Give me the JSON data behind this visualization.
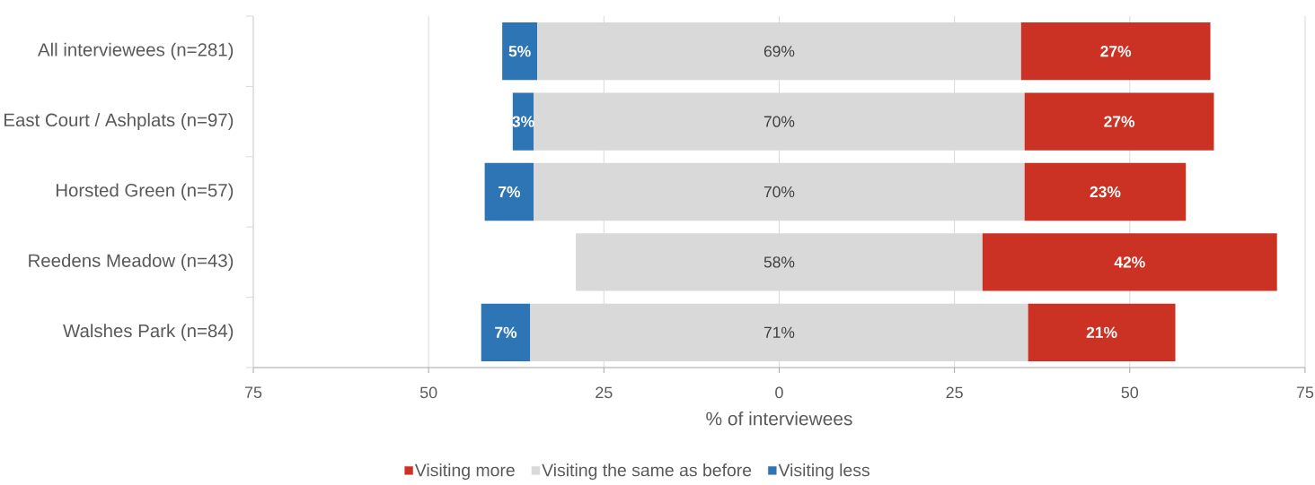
{
  "chart_data": {
    "type": "bar",
    "orientation": "horizontal",
    "categories": [
      "All interviewees (n=281)",
      "East Court / Ashplats (n=97)",
      "Horsted Green (n=57)",
      "Reedens Meadow (n=43)",
      "Walshes Park (n=84)"
    ],
    "series": [
      {
        "name": "Visiting less",
        "color": "#2e75b6",
        "values": [
          5,
          3,
          7,
          null,
          7
        ],
        "base": [
          -39.5,
          -38,
          -42,
          null,
          -42.5
        ],
        "value_labels": [
          "5%",
          "3%",
          "7%",
          null,
          "7%"
        ]
      },
      {
        "name": "Visiting the same as before",
        "color": "#d9d9d9",
        "values": [
          69,
          70,
          70,
          58,
          71
        ],
        "base": [
          -34.5,
          -35,
          -35,
          -29,
          -35.5
        ],
        "value_labels": [
          "69%",
          "70%",
          "70%",
          "58%",
          "71%"
        ]
      },
      {
        "name": "Visiting more",
        "color": "#cc3224",
        "values": [
          27,
          27,
          23,
          42,
          21
        ],
        "base": [
          34.5,
          35,
          35,
          29,
          35.5
        ],
        "value_labels": [
          "27%",
          "27%",
          "23%",
          "42%",
          "21%"
        ]
      }
    ],
    "xlabel": "% of interviewees",
    "xlim": [
      -75,
      75
    ],
    "xticks": [
      {
        "value": -75,
        "label": "75"
      },
      {
        "value": -50,
        "label": "50"
      },
      {
        "value": -25,
        "label": "25"
      },
      0,
      25,
      50,
      75
    ],
    "grid": "x",
    "legend": "bottom"
  }
}
